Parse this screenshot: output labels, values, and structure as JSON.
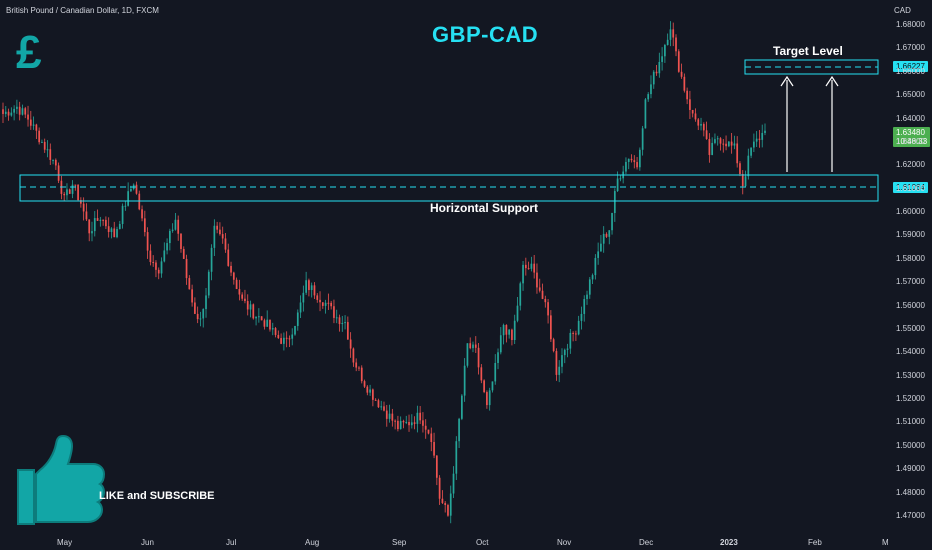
{
  "header": {
    "symbol": "British Pound / Canadian Dollar, 1D, FXCM",
    "currency": "CAD"
  },
  "title": "GBP-CAD",
  "pound_symbol": "£",
  "cta_text": "LIKE and SUBSCRIBE",
  "support_label": "Horizontal Support",
  "target_label": "Target Level",
  "colors": {
    "background": "#131722",
    "up": "#26a69a",
    "down": "#ef5350",
    "accent": "#26e0f2",
    "thumb": "#12a6a6"
  },
  "price_tags": {
    "target": "1.66227",
    "support": "1.61064",
    "last": "1.63480",
    "countdown": "10:48:33"
  },
  "chart_data": {
    "type": "candlestick",
    "title": "GBP-CAD",
    "xlabel": "",
    "ylabel": "CAD",
    "ylim": [
      1.465,
      1.688
    ],
    "y_ticks": [
      "1.68000",
      "1.67000",
      "1.66000",
      "1.65000",
      "1.64000",
      "1.63000",
      "1.62000",
      "1.61000",
      "1.60000",
      "1.59000",
      "1.58000",
      "1.57000",
      "1.56000",
      "1.55000",
      "1.54000",
      "1.53000",
      "1.52000",
      "1.51000",
      "1.50000",
      "1.49000",
      "1.48000",
      "1.47000"
    ],
    "x_ticks": [
      "May",
      "Jun",
      "Jul",
      "Aug",
      "Sep",
      "Oct",
      "Nov",
      "Dec",
      "2023",
      "Feb",
      "M"
    ],
    "support_zone": [
      1.6045,
      1.6155
    ],
    "support_level": 1.61064,
    "target_zone": [
      1.6595,
      1.6645
    ],
    "target_level": 1.66227,
    "last_price": 1.6348,
    "close_path": [
      [
        0,
        1.642
      ],
      [
        5,
        1.645
      ],
      [
        9,
        1.64
      ],
      [
        14,
        1.63
      ],
      [
        19,
        1.62
      ],
      [
        22,
        1.605
      ],
      [
        25,
        1.612
      ],
      [
        28,
        1.604
      ],
      [
        31,
        1.592
      ],
      [
        35,
        1.598
      ],
      [
        40,
        1.59
      ],
      [
        44,
        1.604
      ],
      [
        47,
        1.613
      ],
      [
        50,
        1.596
      ],
      [
        53,
        1.58
      ],
      [
        56,
        1.576
      ],
      [
        59,
        1.586
      ],
      [
        62,
        1.597
      ],
      [
        66,
        1.572
      ],
      [
        70,
        1.553
      ],
      [
        73,
        1.563
      ],
      [
        76,
        1.592
      ],
      [
        79,
        1.588
      ],
      [
        82,
        1.575
      ],
      [
        86,
        1.562
      ],
      [
        90,
        1.557
      ],
      [
        94,
        1.553
      ],
      [
        98,
        1.547
      ],
      [
        102,
        1.544
      ],
      [
        106,
        1.556
      ],
      [
        109,
        1.569
      ],
      [
        112,
        1.566
      ],
      [
        116,
        1.561
      ],
      [
        120,
        1.555
      ],
      [
        123,
        1.553
      ],
      [
        126,
        1.537
      ],
      [
        130,
        1.527
      ],
      [
        134,
        1.52
      ],
      [
        138,
        1.514
      ],
      [
        142,
        1.508
      ],
      [
        146,
        1.51
      ],
      [
        150,
        1.513
      ],
      [
        154,
        1.504
      ],
      [
        157,
        1.478
      ],
      [
        160,
        1.47
      ],
      [
        163,
        1.5
      ],
      [
        167,
        1.543
      ],
      [
        170,
        1.54
      ],
      [
        174,
        1.516
      ],
      [
        177,
        1.533
      ],
      [
        180,
        1.552
      ],
      [
        183,
        1.545
      ],
      [
        187,
        1.576
      ],
      [
        190,
        1.576
      ],
      [
        193,
        1.567
      ],
      [
        196,
        1.555
      ],
      [
        199,
        1.532
      ],
      [
        202,
        1.542
      ],
      [
        206,
        1.55
      ],
      [
        209,
        1.562
      ],
      [
        212,
        1.574
      ],
      [
        215,
        1.587
      ],
      [
        218,
        1.593
      ],
      [
        221,
        1.614
      ],
      [
        225,
        1.624
      ],
      [
        228,
        1.62
      ],
      [
        231,
        1.647
      ],
      [
        234,
        1.658
      ],
      [
        237,
        1.668
      ],
      [
        240,
        1.68
      ],
      [
        242,
        1.667
      ],
      [
        245,
        1.653
      ],
      [
        248,
        1.641
      ],
      [
        251,
        1.637
      ],
      [
        254,
        1.625
      ],
      [
        257,
        1.632
      ],
      [
        260,
        1.63
      ],
      [
        263,
        1.627
      ],
      [
        266,
        1.612
      ],
      [
        269,
        1.627
      ],
      [
        272,
        1.632
      ],
      [
        274,
        1.6348
      ]
    ]
  }
}
